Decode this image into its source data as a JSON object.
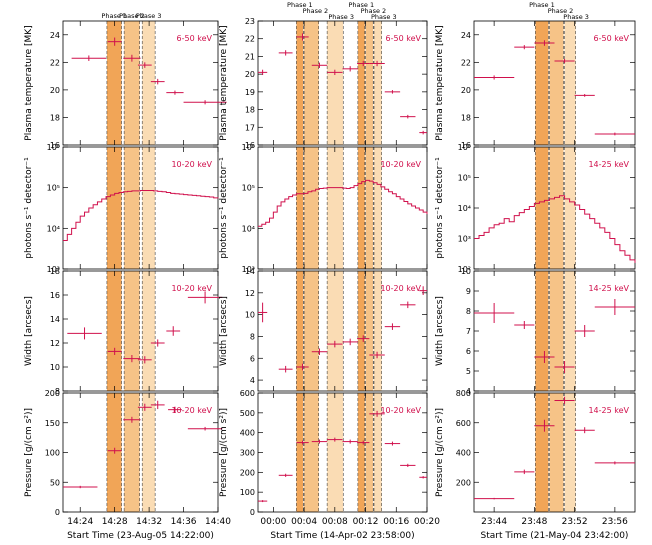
{
  "colors": {
    "data": "#d0104c",
    "phase1": "#f1a557",
    "phase2": "#f6c387",
    "phase3": "#fadcb4",
    "axis": "#000000",
    "dash": "#444444"
  },
  "phase_labels": [
    "Phase 1",
    "Phase 2",
    "Phase 3"
  ],
  "row_ylabels": [
    "Plasma temperature [MK]",
    "photons s⁻¹ detector⁻¹",
    "Width [arcsecs]",
    "Pressure [g/(cm s²)]"
  ],
  "columns": [
    {
      "xlabel": "Start Time (23-Aug-05 14:22:00)",
      "xlim": [
        0,
        18
      ],
      "xticks": [
        2,
        6,
        10,
        14,
        18
      ],
      "xtick_labels": [
        "14:24",
        "14:28",
        "14:32",
        "14:36",
        "14:40"
      ],
      "phases": [
        [
          5.1,
          6.8
        ],
        [
          7.1,
          8.9
        ],
        [
          9.2,
          10.7
        ]
      ],
      "phase_label_style": "row",
      "panels": [
        {
          "type": "errorbar",
          "band": "6-50 keV",
          "ylim": [
            16,
            25
          ],
          "yticks": [
            16,
            18,
            20,
            22,
            24
          ],
          "ytick_labels": [
            "16",
            "18",
            "20",
            "22",
            "24"
          ],
          "x": [
            3.0,
            6.0,
            8.0,
            9.5,
            11.0,
            13.0,
            16.5
          ],
          "xerr": [
            2.0,
            0.8,
            1.0,
            0.8,
            0.8,
            1.0,
            2.5
          ],
          "y": [
            22.3,
            23.5,
            22.3,
            21.8,
            20.6,
            19.8,
            19.1
          ],
          "yerr": [
            0.2,
            0.3,
            0.25,
            0.2,
            0.2,
            0.15,
            0.15
          ]
        },
        {
          "type": "step",
          "band": "10-20 keV",
          "log": true,
          "ylim": [
            3,
            6
          ],
          "yticks": [
            3,
            4,
            5,
            6
          ],
          "ytick_labels": [
            "10³",
            "10⁴",
            "10⁵",
            "10⁶"
          ],
          "x": [
            0,
            0.5,
            1,
            1.5,
            2,
            2.5,
            3,
            3.5,
            4,
            4.5,
            5,
            5.5,
            6,
            6.5,
            7,
            7.5,
            8,
            8.5,
            9,
            9.5,
            10,
            10.5,
            11,
            11.5,
            12,
            12.5,
            13,
            13.5,
            14,
            14.5,
            15,
            15.5,
            16,
            16.5,
            17,
            17.5,
            18
          ],
          "y": [
            3.7,
            3.85,
            4.0,
            4.15,
            4.3,
            4.4,
            4.5,
            4.58,
            4.65,
            4.72,
            4.78,
            4.82,
            4.86,
            4.88,
            4.9,
            4.91,
            4.92,
            4.92,
            4.93,
            4.93,
            4.93,
            4.92,
            4.91,
            4.9,
            4.88,
            4.86,
            4.85,
            4.84,
            4.83,
            4.82,
            4.81,
            4.8,
            4.79,
            4.78,
            4.77,
            4.75,
            4.74
          ]
        },
        {
          "type": "errorbar",
          "band": "10-20 keV",
          "ylim": [
            8,
            18
          ],
          "yticks": [
            8,
            10,
            12,
            14,
            16,
            18
          ],
          "ytick_labels": [
            "8",
            "10",
            "12",
            "14",
            "16",
            "18"
          ],
          "x": [
            2.5,
            6.0,
            8.0,
            9.5,
            11.0,
            12.8,
            16.5
          ],
          "xerr": [
            2.0,
            0.8,
            1.0,
            0.8,
            0.8,
            0.8,
            2.0
          ],
          "y": [
            12.8,
            11.3,
            10.7,
            10.6,
            12.0,
            13.0,
            15.8
          ],
          "yerr": [
            0.5,
            0.3,
            0.3,
            0.3,
            0.3,
            0.4,
            0.5
          ]
        },
        {
          "type": "errorbar",
          "band": "10-20 keV",
          "ylim": [
            0,
            200
          ],
          "yticks": [
            0,
            50,
            100,
            150,
            200
          ],
          "ytick_labels": [
            "0",
            "50",
            "100",
            "150",
            "200"
          ],
          "x": [
            2.0,
            6.0,
            8.0,
            9.5,
            11.0,
            13.0,
            16.5
          ],
          "xerr": [
            2.0,
            0.8,
            1.0,
            0.8,
            0.8,
            0.8,
            2.0
          ],
          "y": [
            42,
            103,
            155,
            176,
            180,
            172,
            140
          ],
          "yerr": [
            2,
            5,
            5,
            6,
            7,
            5,
            3
          ]
        }
      ]
    },
    {
      "xlabel": "Start Time (14-Apr-02 23:58:00)",
      "xlim": [
        0,
        22
      ],
      "xticks": [
        2,
        6,
        10,
        14,
        18,
        22
      ],
      "xtick_labels": [
        "00:00",
        "00:04",
        "00:08",
        "00:12",
        "00:16",
        "00:20"
      ],
      "phases": [
        [
          5.0,
          5.9
        ],
        [
          6.0,
          7.9
        ],
        [
          9.0,
          11.1
        ],
        [
          13.0,
          13.9
        ],
        [
          14.0,
          15.0
        ],
        [
          15.1,
          16.1
        ]
      ],
      "phase_label_style": "stacked",
      "panels": [
        {
          "type": "errorbar",
          "band": "6-50 keV",
          "ylim": [
            16,
            23
          ],
          "yticks": [
            16,
            17,
            18,
            19,
            20,
            21,
            22,
            23
          ],
          "ytick_labels": [
            "16",
            "17",
            "18",
            "19",
            "20",
            "21",
            "22",
            "23"
          ],
          "x": [
            0.6,
            3.6,
            5.8,
            8.0,
            10.0,
            12.0,
            13.7,
            15.5,
            17.5,
            19.5,
            21.5
          ],
          "xerr": [
            0.6,
            0.9,
            0.8,
            1.0,
            1.0,
            1.0,
            0.8,
            1.0,
            1.0,
            1.0,
            0.5
          ],
          "y": [
            20.1,
            21.2,
            22.1,
            20.5,
            20.1,
            20.3,
            20.6,
            20.6,
            19.0,
            17.6,
            16.7
          ],
          "yerr": [
            0.15,
            0.15,
            0.2,
            0.15,
            0.15,
            0.15,
            0.15,
            0.15,
            0.1,
            0.1,
            0.1
          ]
        },
        {
          "type": "step",
          "band": "10-20 keV",
          "log": true,
          "ylim": [
            3,
            6
          ],
          "yticks": [
            3,
            4,
            5,
            6
          ],
          "ytick_labels": [
            "10³",
            "10⁴",
            "10⁵",
            "10⁶"
          ],
          "x": [
            0,
            0.5,
            1,
            1.5,
            2,
            2.5,
            3,
            3.5,
            4,
            4.5,
            5,
            5.5,
            6,
            6.5,
            7,
            7.5,
            8,
            8.5,
            9,
            9.5,
            10,
            10.5,
            11,
            11.5,
            12,
            12.5,
            13,
            13.5,
            14,
            14.5,
            15,
            15.5,
            16,
            16.5,
            17,
            17.5,
            18,
            18.5,
            19,
            19.5,
            20,
            20.5,
            21,
            21.5,
            22
          ],
          "y": [
            4.05,
            4.1,
            4.15,
            4.25,
            4.4,
            4.55,
            4.65,
            4.72,
            4.78,
            4.82,
            4.85,
            4.85,
            4.86,
            4.9,
            4.92,
            4.96,
            4.98,
            4.99,
            5.0,
            5.0,
            5.0,
            5.0,
            4.99,
            4.98,
            5.0,
            5.05,
            5.1,
            5.15,
            5.18,
            5.16,
            5.12,
            5.08,
            5.02,
            4.96,
            4.9,
            4.85,
            4.78,
            4.72,
            4.66,
            4.6,
            4.55,
            4.5,
            4.45,
            4.4,
            4.35
          ]
        },
        {
          "type": "errorbar",
          "band": "10-20 keV",
          "ylim": [
            3,
            14
          ],
          "yticks": [
            4,
            6,
            8,
            10,
            12,
            14
          ],
          "ytick_labels": [
            "4",
            "6",
            "8",
            "10",
            "12",
            "14"
          ],
          "x": [
            0.6,
            3.6,
            5.8,
            8.0,
            10.0,
            12.0,
            13.7,
            15.5,
            17.5,
            19.5,
            21.5
          ],
          "xerr": [
            0.6,
            0.9,
            0.8,
            1.0,
            1.0,
            1.0,
            0.8,
            1.0,
            1.0,
            1.0,
            0.5
          ],
          "y": [
            10.2,
            5.0,
            5.2,
            6.6,
            7.3,
            7.5,
            7.8,
            6.3,
            8.9,
            10.9,
            12.2
          ],
          "yerr": [
            0.9,
            0.3,
            0.3,
            0.3,
            0.3,
            0.3,
            0.3,
            0.3,
            0.3,
            0.3,
            0.4
          ]
        },
        {
          "type": "errorbar",
          "band": "10-20 keV",
          "ylim": [
            0,
            600
          ],
          "yticks": [
            0,
            100,
            200,
            300,
            400,
            500,
            600
          ],
          "ytick_labels": [
            "0",
            "100",
            "200",
            "300",
            "400",
            "500",
            "600"
          ],
          "x": [
            0.6,
            3.6,
            5.8,
            8.0,
            10.0,
            12.0,
            13.7,
            15.5,
            17.5,
            19.5,
            21.5
          ],
          "xerr": [
            0.6,
            0.9,
            0.8,
            1.0,
            1.0,
            1.0,
            0.8,
            1.0,
            1.0,
            1.0,
            0.5
          ],
          "y": [
            55,
            185,
            350,
            355,
            365,
            355,
            350,
            495,
            345,
            235,
            175
          ],
          "yerr": [
            5,
            8,
            10,
            10,
            10,
            10,
            10,
            15,
            10,
            8,
            6
          ]
        }
      ]
    },
    {
      "xlabel": "Start Time (21-May-04 23:42:00)",
      "xlim": [
        0,
        16
      ],
      "xticks": [
        2,
        6,
        10,
        14
      ],
      "xtick_labels": [
        "23:44",
        "23:48",
        "23:52",
        "23:56"
      ],
      "phases": [
        [
          6.1,
          7.4
        ],
        [
          7.5,
          8.9
        ],
        [
          9.0,
          10.1
        ]
      ],
      "phase_label_style": "stacked",
      "panels": [
        {
          "type": "errorbar",
          "band": "6-50 keV",
          "ylim": [
            16,
            25
          ],
          "yticks": [
            16,
            18,
            20,
            22,
            24
          ],
          "ytick_labels": [
            "16",
            "18",
            "20",
            "22",
            "24"
          ],
          "x": [
            2.0,
            5.0,
            7.0,
            9.0,
            11.0,
            14.0
          ],
          "xerr": [
            2.0,
            1.0,
            1.0,
            1.0,
            1.0,
            2.0
          ],
          "y": [
            20.9,
            23.1,
            23.4,
            22.1,
            19.6,
            16.8
          ],
          "yerr": [
            0.15,
            0.15,
            0.2,
            0.15,
            0.1,
            0.1
          ]
        },
        {
          "type": "step",
          "band": "14-25 keV",
          "log": true,
          "ylim": [
            2,
            6
          ],
          "yticks": [
            2,
            3,
            4,
            5,
            6
          ],
          "ytick_labels": [
            "10²",
            "10³",
            "10⁴",
            "10⁵",
            "10⁶"
          ],
          "x": [
            0,
            0.5,
            1,
            1.5,
            2,
            2.5,
            3,
            3.5,
            4,
            4.5,
            5,
            5.5,
            6,
            6.5,
            7,
            7.5,
            8,
            8.5,
            9,
            9.5,
            10,
            10.5,
            11,
            11.5,
            12,
            12.5,
            13,
            13.5,
            14,
            14.5,
            15,
            15.5,
            16
          ],
          "y": [
            3.0,
            3.1,
            3.2,
            3.35,
            3.45,
            3.5,
            3.65,
            3.55,
            3.75,
            3.85,
            3.95,
            4.05,
            4.15,
            4.2,
            4.25,
            4.3,
            4.35,
            4.4,
            4.3,
            4.2,
            4.1,
            3.95,
            3.8,
            3.65,
            3.5,
            3.35,
            3.2,
            3.0,
            2.8,
            2.6,
            2.45,
            2.3,
            2.2
          ]
        },
        {
          "type": "errorbar",
          "band": "14-25 keV",
          "ylim": [
            4,
            10
          ],
          "yticks": [
            4,
            5,
            6,
            7,
            8,
            9,
            10
          ],
          "ytick_labels": [
            "4",
            "5",
            "6",
            "7",
            "8",
            "9",
            "10"
          ],
          "x": [
            2.0,
            5.0,
            7.0,
            9.0,
            11.0,
            14.0
          ],
          "xerr": [
            2.0,
            1.0,
            1.0,
            1.0,
            1.0,
            2.0
          ],
          "y": [
            7.9,
            7.3,
            5.7,
            5.2,
            7.0,
            8.2
          ],
          "yerr": [
            0.5,
            0.2,
            0.3,
            0.3,
            0.3,
            0.4
          ]
        },
        {
          "type": "errorbar",
          "band": "14-25 keV",
          "ylim": [
            0,
            800
          ],
          "yticks": [
            200,
            400,
            600,
            800
          ],
          "ytick_labels": [
            "200",
            "400",
            "600",
            "800"
          ],
          "x": [
            2.0,
            5.0,
            7.0,
            9.0,
            11.0,
            14.0
          ],
          "xerr": [
            2.0,
            1.0,
            1.0,
            1.0,
            1.0,
            2.0
          ],
          "y": [
            90,
            270,
            580,
            750,
            550,
            330
          ],
          "yerr": [
            5,
            15,
            40,
            25,
            20,
            10
          ]
        }
      ]
    }
  ]
}
